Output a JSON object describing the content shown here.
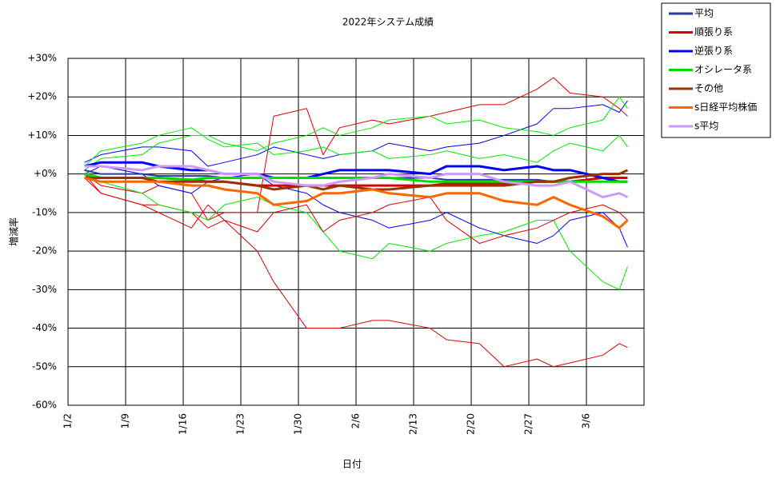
{
  "chart_data": {
    "type": "line",
    "title": "2022年システム成績",
    "xlabel": "日付",
    "ylabel": "増減率",
    "x": [
      "1/4",
      "1/6",
      "1/11",
      "1/13",
      "1/17",
      "1/19",
      "1/21",
      "1/25",
      "1/27",
      "1/31",
      "2/2",
      "2/4",
      "2/8",
      "2/10",
      "2/15",
      "2/17",
      "2/21",
      "2/24",
      "2/28",
      "3/2",
      "3/4",
      "3/8",
      "3/10",
      "3/11"
    ],
    "xlim": [
      "1/2",
      "3/13"
    ],
    "xticks": [
      "1/2",
      "1/9",
      "1/16",
      "1/23",
      "1/30",
      "2/6",
      "2/13",
      "2/20",
      "2/27",
      "3/6"
    ],
    "ylim": [
      -60,
      30
    ],
    "yticks": [
      {
        "value": 30,
        "label": "+30%"
      },
      {
        "value": 20,
        "label": "+20%"
      },
      {
        "value": 10,
        "label": "+10%"
      },
      {
        "value": 0,
        "label": "+0%"
      },
      {
        "value": -10,
        "label": "-10%"
      },
      {
        "value": -20,
        "label": "-20%"
      },
      {
        "value": -30,
        "label": "-30%"
      },
      {
        "value": -40,
        "label": "-40%"
      },
      {
        "value": -50,
        "label": "-50%"
      },
      {
        "value": -60,
        "label": "-60%"
      }
    ],
    "grid": true,
    "legend": "outside-top-right",
    "thin_series": [
      {
        "color": "#e00000",
        "values": [
          0,
          -5,
          -8,
          -8,
          -10,
          -14,
          -12,
          -20,
          -28,
          -40,
          -40,
          -40,
          -38,
          -38,
          -40,
          -43,
          -44,
          -50,
          -48,
          -50,
          -49,
          -47,
          -44,
          -45
        ]
      },
      {
        "color": "#e00000",
        "values": [
          0,
          -3,
          -5,
          -3,
          -5,
          -12,
          -10,
          -10,
          15,
          17,
          5,
          12,
          14,
          13,
          15,
          16,
          18,
          18,
          22,
          25,
          21,
          20,
          17,
          15
        ]
      },
      {
        "color": "#00ee00",
        "values": [
          0,
          -2,
          -5,
          -8,
          -10,
          -12,
          -8,
          -6,
          -8,
          -10,
          -15,
          -20,
          -22,
          -18,
          -20,
          -18,
          -16,
          -15,
          -12,
          -12,
          -20,
          -28,
          -30,
          -24
        ]
      },
      {
        "color": "#0000ff",
        "values": [
          3,
          5,
          7,
          7,
          6,
          2,
          3,
          5,
          7,
          5,
          4,
          5,
          6,
          8,
          6,
          7,
          8,
          10,
          13,
          17,
          17,
          18,
          16,
          19
        ]
      },
      {
        "color": "#00ee00",
        "values": [
          1,
          4,
          5,
          8,
          10,
          10,
          8,
          6,
          8,
          10,
          12,
          10,
          12,
          14,
          15,
          13,
          14,
          12,
          11,
          10,
          12,
          14,
          20,
          17
        ]
      },
      {
        "color": "#0000ff",
        "values": [
          0,
          2,
          0,
          -3,
          -5,
          -2,
          -1,
          0,
          -3,
          -5,
          -8,
          -10,
          -12,
          -14,
          -12,
          -10,
          -14,
          -16,
          -18,
          -16,
          -12,
          -10,
          -14,
          -19
        ]
      },
      {
        "color": "#e00000",
        "values": [
          -1,
          -5,
          -8,
          -10,
          -14,
          -8,
          -12,
          -15,
          -10,
          -8,
          -15,
          -12,
          -10,
          -8,
          -6,
          -12,
          -18,
          -16,
          -14,
          -12,
          -10,
          -8,
          -10,
          -12
        ]
      },
      {
        "color": "#00ee00",
        "values": [
          2,
          6,
          8,
          10,
          12,
          9,
          7,
          8,
          5,
          6,
          7,
          5,
          6,
          4,
          5,
          6,
          4,
          5,
          3,
          6,
          8,
          6,
          10,
          7
        ]
      }
    ],
    "series": [
      {
        "name": "平均",
        "color": "#2a3a9a",
        "values": [
          1,
          0,
          0,
          -0.5,
          -0.5,
          -0.5,
          -1,
          -1,
          -1,
          -1,
          -1,
          -1,
          -1,
          -1,
          -1,
          -1.5,
          -1.5,
          -1.5,
          -1.5,
          -2,
          -2,
          -2,
          -2,
          -2
        ]
      },
      {
        "name": "順張り系",
        "color": "#e00000",
        "values": [
          0,
          -1,
          -1,
          -1,
          -1.5,
          -2,
          -2,
          -3,
          -3,
          -3,
          -3,
          -3,
          -3,
          -3,
          -3,
          -2.5,
          -2.5,
          -2.5,
          -2,
          -2,
          -2,
          -1,
          -1,
          -1
        ]
      },
      {
        "name": "逆張り系",
        "color": "#0000ff",
        "values": [
          2,
          3,
          3,
          2,
          1,
          1,
          0,
          0,
          -1,
          -1,
          0,
          1,
          1,
          1,
          0,
          2,
          2,
          1,
          2,
          1,
          1,
          -1,
          -2,
          -2
        ]
      },
      {
        "name": "オシレータ系",
        "color": "#00dd00",
        "values": [
          0,
          -1,
          -1,
          -1,
          -1.5,
          -1,
          -1,
          -1,
          -1,
          -1,
          -1,
          -1,
          -1,
          -1,
          -2,
          -2,
          -2,
          -2,
          -2,
          -2,
          -2,
          -2,
          -2,
          -2
        ]
      },
      {
        "name": "その他",
        "color": "#993300",
        "values": [
          -1,
          -1,
          -1,
          -2,
          -2,
          -2,
          -2,
          -3,
          -4,
          -3,
          -4,
          -3,
          -4,
          -4,
          -3,
          -3,
          -3,
          -3,
          -2,
          -2,
          -1,
          0,
          0,
          1
        ]
      },
      {
        "name": "s日経平均株価",
        "color": "#ff6600",
        "values": [
          -1,
          -2,
          -2,
          -2,
          -3,
          -3,
          -4,
          -5,
          -8,
          -7,
          -5,
          -5,
          -4,
          -5,
          -6,
          -5,
          -5,
          -7,
          -8,
          -6,
          -8,
          -11,
          -14,
          -12
        ]
      },
      {
        "name": "s平均",
        "color": "#cc99ff",
        "values": [
          2,
          2,
          1,
          2,
          2,
          1,
          0,
          0,
          -2,
          -3,
          -3,
          -2,
          -1,
          0,
          -1,
          0,
          0,
          -2,
          -3,
          -3,
          -2,
          -6,
          -5,
          -6
        ]
      }
    ]
  }
}
